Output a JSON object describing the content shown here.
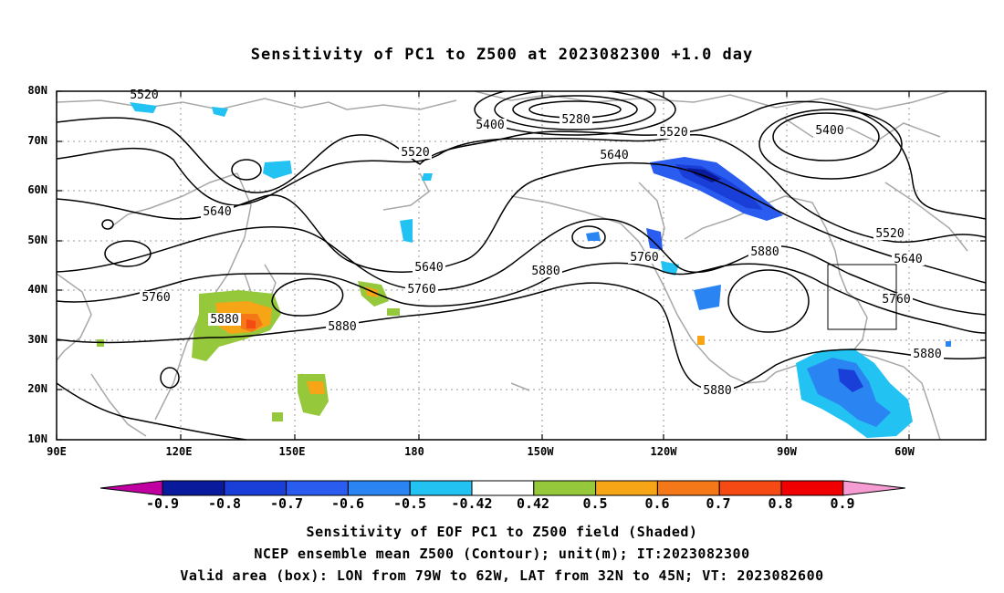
{
  "title": "Sensitivity of PC1 to Z500 at 2023082300 +1.0 day",
  "lat_labels": [
    "80N",
    "70N",
    "60N",
    "50N",
    "40N",
    "30N",
    "20N",
    "10N"
  ],
  "lon_labels": [
    "90E",
    "120E",
    "150E",
    "180",
    "150W",
    "120W",
    "90W",
    "60W"
  ],
  "contour_labels": [
    "5520",
    "5400",
    "5280",
    "5520",
    "5400",
    "5520",
    "5640",
    "5640",
    "5520",
    "5640",
    "5640",
    "5760",
    "5760",
    "5760",
    "5880",
    "5880",
    "5880",
    "5880",
    "5880",
    "5880",
    "5760"
  ],
  "colorbar": {
    "labels": [
      "-0.9",
      "-0.8",
      "-0.7",
      "-0.6",
      "-0.5",
      "-0.42",
      "0.42",
      "0.5",
      "0.6",
      "0.7",
      "0.8",
      "0.9"
    ],
    "colors": [
      "#c000a0",
      "#0a1a9c",
      "#1a3fd8",
      "#2a5cf0",
      "#2a85f2",
      "#22c2f2",
      "#ffffff",
      "#96c83c",
      "#f5a516",
      "#f57818",
      "#f54a14",
      "#f00000",
      "#f59cd2"
    ]
  },
  "captions": [
    "Sensitivity of EOF PC1 to Z500 field (Shaded)",
    "NCEP ensemble mean Z500 (Contour); unit(m); IT:2023082300",
    "Valid area (box): LON from 79W to 62W, LAT from 32N to 45N; VT: 2023082600"
  ],
  "valid_box": {
    "lon_from": "79W",
    "lon_to": "62W",
    "lat_from": "32N",
    "lat_to": "45N"
  },
  "map_colors": {
    "coast": "#a8a8a8",
    "grid": "#9a9a9a",
    "contour": "#000000"
  }
}
